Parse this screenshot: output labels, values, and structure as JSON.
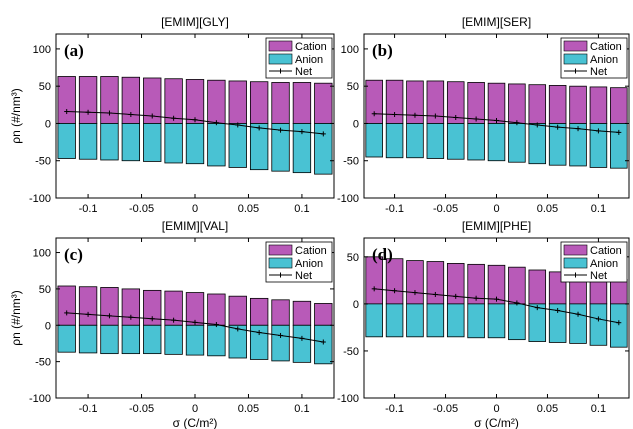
{
  "colors": {
    "cation": "#b85ab8",
    "anion": "#49c2d3",
    "net": "#000000"
  },
  "shared": {
    "x_ticks": [
      -0.1,
      -0.05,
      0,
      0.05,
      0.1
    ],
    "x_tick_labels": [
      "-0.1",
      "-0.05",
      "0",
      "0.05",
      "0.1"
    ],
    "xlim": [
      -0.13,
      0.13
    ],
    "xlabel": "σ (C/m²)",
    "ylabel": "ρn (#/nm³)",
    "legend": [
      "Cation",
      "Anion",
      "Net"
    ],
    "x": [
      -0.12,
      -0.1,
      -0.08,
      -0.06,
      -0.04,
      -0.02,
      0,
      0.02,
      0.04,
      0.06,
      0.08,
      0.1,
      0.12
    ]
  },
  "chart_data": [
    {
      "type": "bar",
      "title": "[EMIM][GLY]",
      "letter": "(a)",
      "ylim": [
        -100,
        120
      ],
      "y_ticks": [
        -100,
        -50,
        0,
        50,
        100
      ],
      "y_tick_labels": [
        "-100",
        "-50",
        "0",
        "50",
        "100"
      ],
      "series": [
        {
          "name": "Cation",
          "values": [
            63,
            63,
            63,
            62,
            61,
            60,
            59,
            58,
            57,
            56,
            55,
            55,
            54
          ]
        },
        {
          "name": "Anion",
          "values": [
            -47,
            -48,
            -49,
            -50,
            -51,
            -53,
            -54,
            -57,
            -59,
            -62,
            -64,
            -66,
            -68
          ]
        },
        {
          "name": "Net",
          "values": [
            16,
            15,
            14,
            12,
            10,
            7,
            5,
            1,
            -2,
            -6,
            -9,
            -11,
            -14
          ]
        }
      ]
    },
    {
      "type": "bar",
      "title": "[EMIM][SER]",
      "letter": "(b)",
      "ylim": [
        -100,
        120
      ],
      "y_ticks": [
        -100,
        -50,
        0,
        50,
        100
      ],
      "y_tick_labels": [
        "-100",
        "-50",
        "0",
        "50",
        "100"
      ],
      "series": [
        {
          "name": "Cation",
          "values": [
            58,
            58,
            57,
            57,
            56,
            55,
            54,
            53,
            52,
            51,
            50,
            49,
            48
          ]
        },
        {
          "name": "Anion",
          "values": [
            -45,
            -46,
            -46,
            -47,
            -48,
            -49,
            -50,
            -52,
            -54,
            -56,
            -57,
            -59,
            -60
          ]
        },
        {
          "name": "Net",
          "values": [
            13,
            12,
            11,
            10,
            8,
            6,
            4,
            1,
            -2,
            -5,
            -7,
            -10,
            -12
          ]
        }
      ]
    },
    {
      "type": "bar",
      "title": "[EMIM][VAL]",
      "letter": "(c)",
      "ylim": [
        -100,
        120
      ],
      "y_ticks": [
        -100,
        -50,
        0,
        50,
        100
      ],
      "y_tick_labels": [
        "-100",
        "-50",
        "0",
        "50",
        "100"
      ],
      "series": [
        {
          "name": "Cation",
          "values": [
            54,
            53,
            52,
            50,
            48,
            47,
            45,
            43,
            40,
            37,
            35,
            33,
            30
          ]
        },
        {
          "name": "Anion",
          "values": [
            -37,
            -38,
            -39,
            -39,
            -39,
            -40,
            -41,
            -42,
            -45,
            -47,
            -49,
            -51,
            -53
          ]
        },
        {
          "name": "Net",
          "values": [
            17,
            15,
            13,
            11,
            9,
            7,
            4,
            1,
            -5,
            -10,
            -14,
            -18,
            -23
          ]
        }
      ]
    },
    {
      "type": "bar",
      "title": "[EMIM][PHE]",
      "letter": "(d)",
      "ylim": [
        -100,
        70
      ],
      "y_ticks": [
        -100,
        -50,
        0,
        50
      ],
      "y_tick_labels": [
        "-100",
        "-50",
        "0",
        "50"
      ],
      "series": [
        {
          "name": "Cation",
          "values": [
            50,
            48,
            46,
            45,
            43,
            42,
            41,
            39,
            36,
            34,
            31,
            28,
            26
          ]
        },
        {
          "name": "Anion",
          "values": [
            -35,
            -35,
            -35,
            -35,
            -35,
            -36,
            -36,
            -38,
            -40,
            -41,
            -42,
            -44,
            -46
          ]
        },
        {
          "name": "Net",
          "values": [
            16,
            14,
            12,
            10,
            8,
            6,
            5,
            1,
            -4,
            -7,
            -11,
            -16,
            -20
          ]
        }
      ]
    }
  ]
}
